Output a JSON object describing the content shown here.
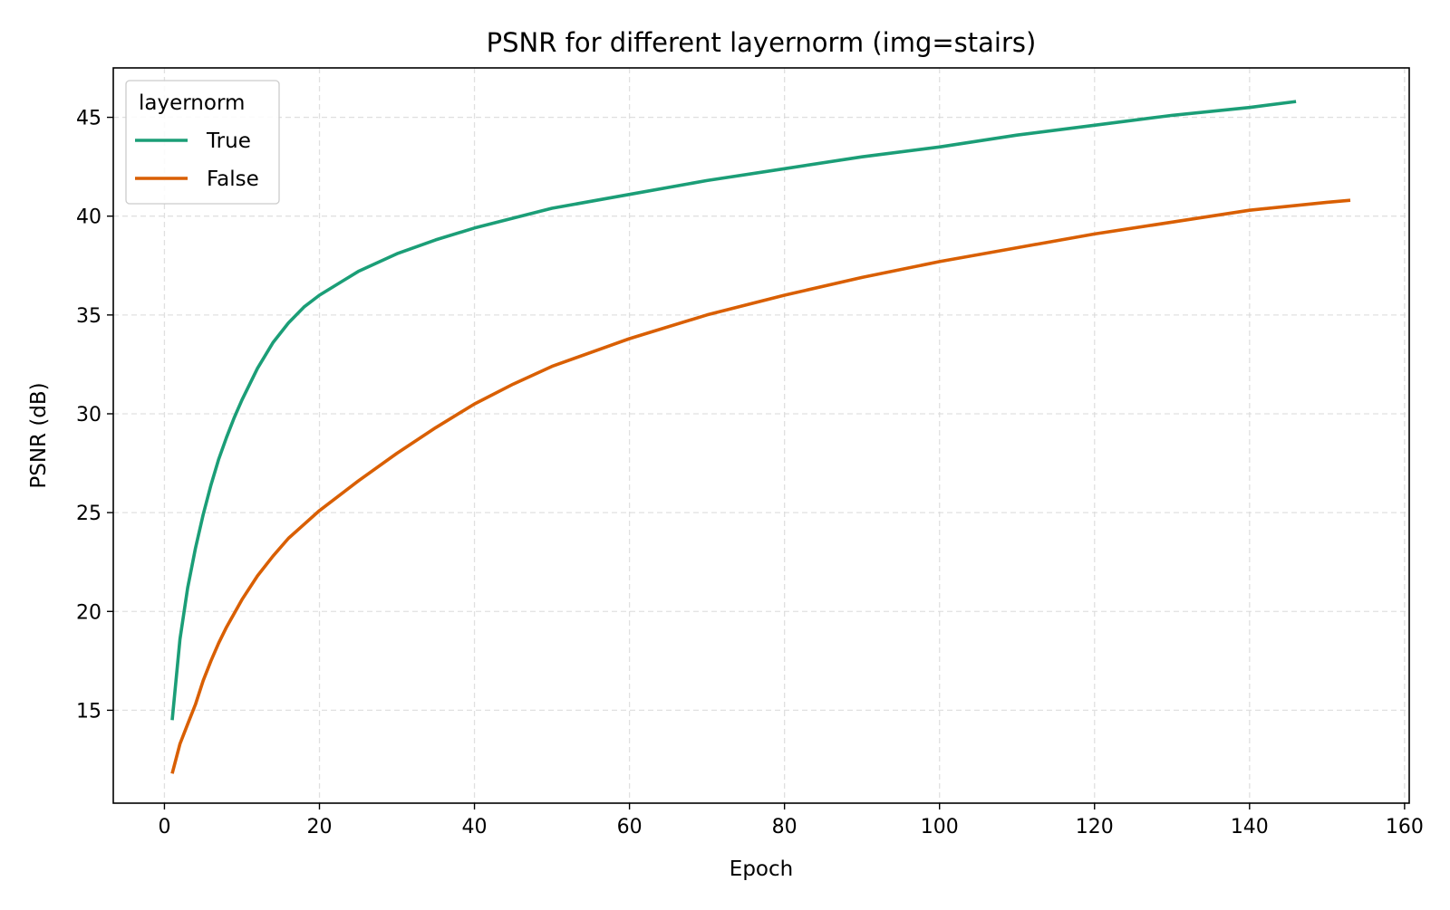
{
  "chart_data": {
    "type": "line",
    "title": "PSNR for different layernorm (img=stairs)",
    "xlabel": "Epoch",
    "ylabel": "PSNR (dB)",
    "xlim": [
      -6.6,
      160.6
    ],
    "ylim": [
      10.3,
      47.5
    ],
    "xticks": [
      0,
      20,
      40,
      60,
      80,
      100,
      120,
      140,
      160
    ],
    "yticks": [
      15,
      20,
      25,
      30,
      35,
      40,
      45
    ],
    "grid": true,
    "legend": {
      "title": "layernorm",
      "position": "top-left"
    },
    "series": [
      {
        "name": "True",
        "color": "#1b9e77",
        "x": [
          1,
          2,
          3,
          4,
          5,
          6,
          7,
          8,
          9,
          10,
          12,
          14,
          16,
          18,
          20,
          25,
          30,
          35,
          40,
          45,
          50,
          60,
          70,
          80,
          90,
          100,
          110,
          120,
          130,
          140,
          146
        ],
        "y": [
          14.5,
          18.6,
          21.2,
          23.2,
          24.9,
          26.4,
          27.7,
          28.8,
          29.8,
          30.7,
          32.3,
          33.6,
          34.6,
          35.4,
          36.0,
          37.2,
          38.1,
          38.8,
          39.4,
          39.9,
          40.4,
          41.1,
          41.8,
          42.4,
          43.0,
          43.5,
          44.1,
          44.6,
          45.1,
          45.5,
          45.8
        ]
      },
      {
        "name": "False",
        "color": "#d95f02",
        "x": [
          1,
          2,
          3,
          4,
          5,
          6,
          7,
          8,
          10,
          12,
          14,
          16,
          18,
          20,
          25,
          30,
          35,
          40,
          45,
          50,
          60,
          70,
          80,
          90,
          100,
          110,
          120,
          130,
          140,
          150,
          153
        ],
        "y": [
          11.8,
          13.3,
          14.3,
          15.3,
          16.5,
          17.5,
          18.4,
          19.2,
          20.6,
          21.8,
          22.8,
          23.7,
          24.4,
          25.1,
          26.6,
          28.0,
          29.3,
          30.5,
          31.5,
          32.4,
          33.8,
          35.0,
          36.0,
          36.9,
          37.7,
          38.4,
          39.1,
          39.7,
          40.3,
          40.7,
          40.8
        ]
      }
    ]
  }
}
